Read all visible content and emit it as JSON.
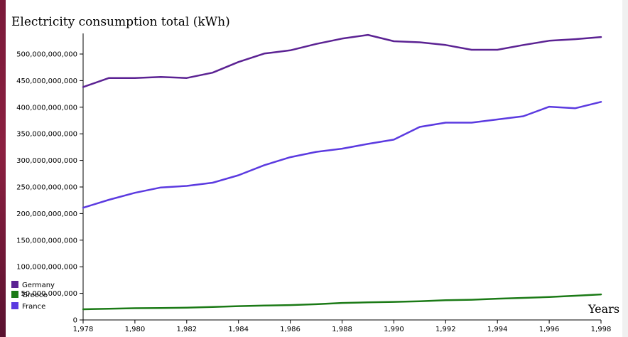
{
  "chart_data": {
    "type": "line",
    "title": "Electricity consumption total (kWh)",
    "xlabel": "Years",
    "ylabel": "",
    "x": [
      1978,
      1979,
      1980,
      1981,
      1982,
      1983,
      1984,
      1985,
      1986,
      1987,
      1988,
      1989,
      1990,
      1991,
      1992,
      1993,
      1994,
      1995,
      1996,
      1997,
      1998
    ],
    "xlim": [
      1978,
      1998
    ],
    "ylim": [
      0,
      520000000000
    ],
    "x_ticks": [
      "1,978",
      "1,980",
      "1,982",
      "1,984",
      "1,986",
      "1,988",
      "1,990",
      "1,992",
      "1,994",
      "1,996",
      "1,998"
    ],
    "y_ticks": [
      "0",
      "50,000,000,000",
      "100,000,000,000",
      "150,000,000,000",
      "200,000,000,000",
      "250,000,000,000",
      "300,000,000,000",
      "350,000,000,000",
      "400,000,000,000",
      "450,000,000,000",
      "500,000,000,000"
    ],
    "legend_position": "bottom-left",
    "grid": false,
    "series": [
      {
        "name": "Germany",
        "color": "#5b2293",
        "values": [
          438000000000,
          455000000000,
          455000000000,
          457000000000,
          455000000000,
          465000000000,
          485000000000,
          501000000000,
          507000000000,
          519000000000,
          529000000000,
          536000000000,
          524000000000,
          522000000000,
          517000000000,
          508000000000,
          508000000000,
          517000000000,
          525000000000,
          528000000000,
          532000000000
        ]
      },
      {
        "name": "Greece",
        "color": "#1b7a16",
        "values": [
          20000000000,
          21000000000,
          22000000000,
          22500000000,
          23000000000,
          24500000000,
          26000000000,
          27000000000,
          28000000000,
          29500000000,
          32000000000,
          33000000000,
          34000000000,
          35000000000,
          37000000000,
          38000000000,
          40000000000,
          41500000000,
          43000000000,
          45500000000,
          48000000000
        ]
      },
      {
        "name": "France",
        "color": "#5b3ae0",
        "values": [
          211000000000,
          226000000000,
          239000000000,
          249000000000,
          252000000000,
          258000000000,
          272000000000,
          291000000000,
          306000000000,
          316000000000,
          322000000000,
          331000000000,
          339000000000,
          363000000000,
          371000000000,
          371000000000,
          377000000000,
          383000000000,
          401000000000,
          398000000000,
          410000000000
        ]
      }
    ]
  }
}
